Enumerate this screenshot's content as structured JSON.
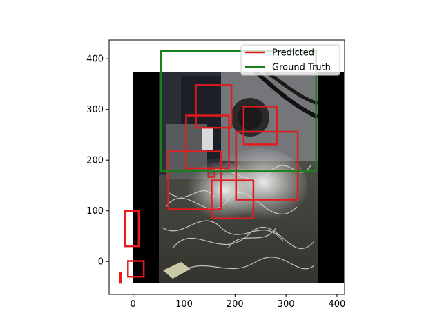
{
  "chart_data": {
    "type": "image-with-bounding-boxes",
    "xlim": [
      -47,
      415
    ],
    "ylim": [
      437,
      -65
    ],
    "xticks": [
      0,
      100,
      200,
      300,
      400
    ],
    "yticks": [
      0,
      100,
      200,
      300,
      400
    ],
    "image_extent": {
      "x": [
        0,
        415
      ],
      "y": [
        0,
        415
      ]
    },
    "legend": {
      "placement": "upper right",
      "entries": [
        {
          "label": "Predicted",
          "color": "#e41a1c"
        },
        {
          "label": "Ground Truth",
          "color": "#1a7f1a"
        }
      ]
    },
    "series": [
      {
        "name": "Predicted",
        "color": "#e41a1c",
        "boxes": [
          {
            "x1": -26,
            "y1": -42,
            "x2": -24,
            "y2": -22
          },
          {
            "x1": -10,
            "y1": -30,
            "x2": 21,
            "y2": 1
          },
          {
            "x1": -16,
            "y1": 30,
            "x2": 11,
            "y2": 100
          },
          {
            "x1": 69,
            "y1": 103,
            "x2": 172,
            "y2": 217
          },
          {
            "x1": 154,
            "y1": 85,
            "x2": 236,
            "y2": 160
          },
          {
            "x1": 202,
            "y1": 122,
            "x2": 323,
            "y2": 256
          },
          {
            "x1": 148,
            "y1": 167,
            "x2": 160,
            "y2": 184
          },
          {
            "x1": 104,
            "y1": 184,
            "x2": 188,
            "y2": 288
          },
          {
            "x1": 217,
            "y1": 231,
            "x2": 282,
            "y2": 306
          },
          {
            "x1": 123,
            "y1": 264,
            "x2": 193,
            "y2": 348
          }
        ]
      },
      {
        "name": "Ground Truth",
        "color": "#1a7f1a",
        "boxes": [
          {
            "x1": 55,
            "y1": 178,
            "x2": 359,
            "y2": 415
          }
        ]
      }
    ]
  }
}
